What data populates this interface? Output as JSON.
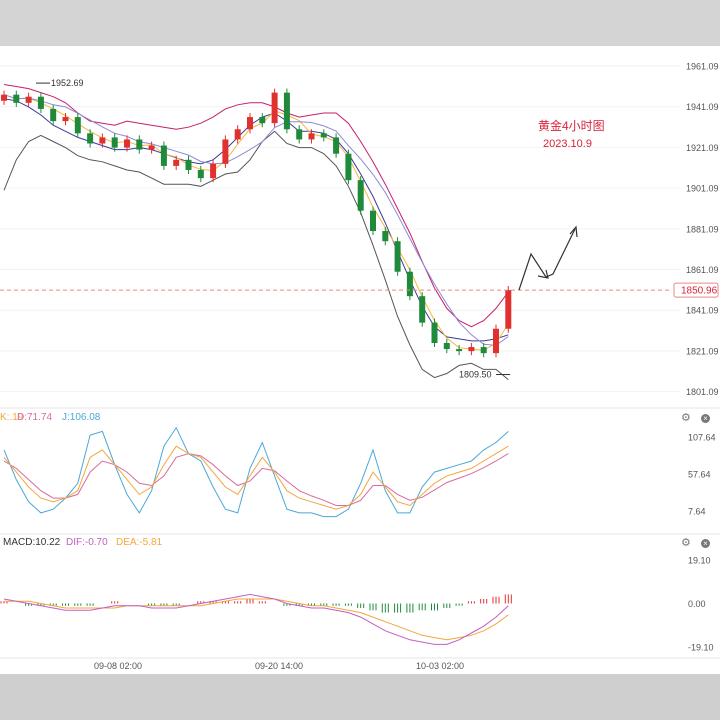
{
  "chart_data": {
    "type": "candlestick",
    "annotation": {
      "title": "黄金4小时图",
      "date": "2023.10.9"
    },
    "price_axis": {
      "ticks": [
        "1961.09",
        "1941.09",
        "1921.09",
        "1901.09",
        "1881.09",
        "1861.09",
        "1841.09",
        "1821.09",
        "1801.09"
      ],
      "range": [
        1796,
        1966
      ]
    },
    "current_price": "1850.96",
    "high_marker": "1952.69",
    "low_marker": "1809.50",
    "time_ticks": [
      "09-08 02:00",
      "09-20 14:00",
      "10-03 02:00"
    ],
    "bollinger_mid": [
      1945,
      1944,
      1941,
      1937,
      1932,
      1929,
      1926,
      1924,
      1922,
      1920,
      1920,
      1921,
      1920,
      1918,
      1916,
      1914,
      1913,
      1915,
      1920,
      1926,
      1932,
      1936,
      1938,
      1934,
      1929,
      1929,
      1928,
      1925,
      1918,
      1908,
      1897,
      1884,
      1870,
      1856,
      1843,
      1833,
      1828,
      1827,
      1826,
      1826,
      1827,
      1829
    ],
    "bollinger_upper": [
      1952,
      1951,
      1950,
      1948,
      1946,
      1943,
      1938,
      1934,
      1933,
      1932,
      1934,
      1933,
      1932,
      1931,
      1930,
      1931,
      1933,
      1936,
      1940,
      1942,
      1943,
      1943,
      1941,
      1938,
      1936,
      1937,
      1938,
      1938,
      1933,
      1924,
      1914,
      1903,
      1891,
      1879,
      1865,
      1852,
      1842,
      1836,
      1833,
      1836,
      1842,
      1850
    ],
    "bollinger_lower": [
      1900,
      1915,
      1924,
      1927,
      1924,
      1921,
      1917,
      1915,
      1914,
      1912,
      1910,
      1909,
      1906,
      1903,
      1903,
      1903,
      1902,
      1905,
      1908,
      1909,
      1915,
      1924,
      1929,
      1923,
      1921,
      1921,
      1918,
      1912,
      1902,
      1889,
      1873,
      1856,
      1838,
      1824,
      1812,
      1808,
      1810,
      1814,
      1815,
      1812,
      1812,
      1807
    ],
    "candles": [
      [
        1944,
        1947
      ],
      [
        1947,
        1943
      ],
      [
        1943,
        1946
      ],
      [
        1946,
        1940
      ],
      [
        1940,
        1934
      ],
      [
        1934,
        1936
      ],
      [
        1936,
        1928
      ],
      [
        1928,
        1923
      ],
      [
        1923,
        1926
      ],
      [
        1926,
        1921
      ],
      [
        1921,
        1925
      ],
      [
        1925,
        1920
      ],
      [
        1920,
        1922
      ],
      [
        1922,
        1912
      ],
      [
        1912,
        1915
      ],
      [
        1915,
        1910
      ],
      [
        1910,
        1906
      ],
      [
        1906,
        1913
      ],
      [
        1913,
        1925
      ],
      [
        1925,
        1930
      ],
      [
        1930,
        1936
      ],
      [
        1936,
        1933
      ],
      [
        1933,
        1948
      ],
      [
        1948,
        1930
      ],
      [
        1930,
        1925
      ],
      [
        1925,
        1928
      ],
      [
        1928,
        1926
      ],
      [
        1926,
        1918
      ],
      [
        1918,
        1905
      ],
      [
        1905,
        1890
      ],
      [
        1890,
        1880
      ],
      [
        1880,
        1875
      ],
      [
        1875,
        1860
      ],
      [
        1860,
        1848
      ],
      [
        1848,
        1835
      ],
      [
        1835,
        1825
      ],
      [
        1825,
        1822
      ],
      [
        1822,
        1821
      ],
      [
        1821,
        1823
      ],
      [
        1823,
        1820
      ],
      [
        1820,
        1832
      ],
      [
        1832,
        1851
      ]
    ],
    "kdj": {
      "labels": {
        "k": "K:.19",
        "d": "D:71.74",
        "j": "J:106.08"
      },
      "ticks": [
        "107.64",
        "57.64",
        "7.64"
      ],
      "range": [
        -10,
        125
      ],
      "k": [
        80,
        60,
        40,
        25,
        20,
        25,
        35,
        80,
        90,
        70,
        50,
        30,
        40,
        70,
        95,
        85,
        80,
        60,
        40,
        30,
        55,
        80,
        60,
        35,
        25,
        20,
        15,
        10,
        15,
        30,
        60,
        40,
        20,
        15,
        30,
        45,
        55,
        60,
        65,
        75,
        85,
        95
      ],
      "d": [
        75,
        65,
        50,
        35,
        25,
        25,
        30,
        60,
        75,
        70,
        60,
        45,
        42,
        55,
        80,
        85,
        82,
        70,
        55,
        42,
        48,
        65,
        62,
        48,
        35,
        28,
        22,
        15,
        15,
        22,
        42,
        42,
        30,
        22,
        26,
        36,
        46,
        52,
        58,
        66,
        75,
        85
      ],
      "j": [
        90,
        50,
        20,
        5,
        10,
        25,
        45,
        110,
        115,
        70,
        30,
        5,
        35,
        95,
        120,
        85,
        75,
        40,
        10,
        5,
        65,
        100,
        55,
        10,
        5,
        5,
        0,
        0,
        10,
        45,
        90,
        35,
        5,
        5,
        40,
        60,
        65,
        70,
        75,
        90,
        100,
        115
      ]
    },
    "macd": {
      "labels": {
        "macd": "MACD:10.22",
        "dif": "DIF:-0.70",
        "dea": "DEA:-5.81"
      },
      "ticks": [
        "19.10",
        "0.00",
        "-19.10"
      ],
      "range": [
        -24,
        24
      ],
      "dif": [
        2,
        1,
        0,
        -1,
        -2,
        -3,
        -3,
        -3,
        -2,
        -1,
        -1,
        -1,
        -2,
        -2,
        -2,
        -1,
        0,
        1,
        2,
        3,
        4,
        3,
        2,
        0,
        -1,
        -2,
        -2,
        -3,
        -4,
        -6,
        -9,
        -12,
        -14,
        -16,
        -17,
        -18,
        -18,
        -16,
        -13,
        -10,
        -6,
        -1
      ],
      "dea": [
        1,
        1,
        1,
        0,
        -1,
        -2,
        -2,
        -2,
        -2,
        -2,
        -1,
        -1,
        -1,
        -1,
        -1,
        -1,
        -1,
        0,
        1,
        2,
        2,
        2,
        2,
        1,
        0,
        -1,
        -1,
        -2,
        -3,
        -4,
        -6,
        -8,
        -10,
        -12,
        -14,
        -15,
        -16,
        -15,
        -14,
        -12,
        -9,
        -5
      ],
      "hist": [
        1,
        0,
        -1,
        -1,
        -1,
        -1,
        -1,
        -1,
        0,
        1,
        0,
        0,
        -1,
        -1,
        -1,
        0,
        1,
        1,
        1,
        1,
        2,
        1,
        0,
        -1,
        -1,
        -1,
        -1,
        -1,
        -1,
        -2,
        -3,
        -4,
        -4,
        -4,
        -3,
        -3,
        -2,
        -1,
        1,
        2,
        3,
        4
      ]
    }
  },
  "colors": {
    "up": "#e0312f",
    "down": "#1f8a3a",
    "annotation": "#d8223a",
    "boll_upper": "#c81e6b",
    "boll_mid": "#3a3a9a",
    "boll_lower": "#555555",
    "ma_short": "#f4b63c",
    "ma_mid": "#8a8ad8",
    "kdj_k": "#f4a63c",
    "kdj_d": "#d86ba0",
    "kdj_j": "#4aa8d8",
    "dif": "#c060c0",
    "dea": "#f4a63c"
  },
  "icons": [
    "gear-icon",
    "close-icon"
  ]
}
